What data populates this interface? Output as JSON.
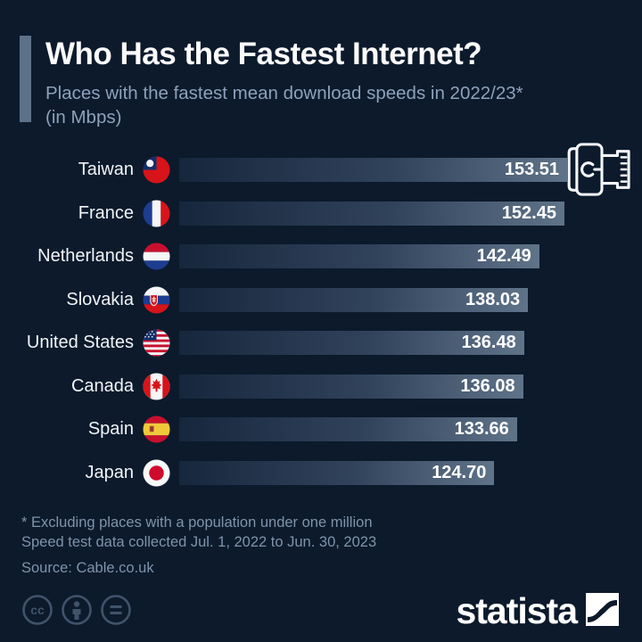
{
  "header": {
    "title": "Who Has the Fastest Internet?",
    "subtitle_line1": "Places with the fastest mean download speeds in 2022/23*",
    "subtitle_line2": "(in Mbps)"
  },
  "chart_data": {
    "type": "bar",
    "orientation": "horizontal",
    "title": "Who Has the Fastest Internet?",
    "subtitle": "Places with the fastest mean download speeds in 2022/23* (in Mbps)",
    "unit": "Mbps",
    "xlim": [
      0,
      153.51
    ],
    "grid": false,
    "legend": null,
    "categories": [
      "Taiwan",
      "France",
      "Netherlands",
      "Slovakia",
      "United States",
      "Canada",
      "Spain",
      "Japan"
    ],
    "values": [
      153.51,
      152.45,
      142.49,
      138.03,
      136.48,
      136.08,
      133.66,
      124.7
    ],
    "rows": [
      {
        "label": "Taiwan",
        "value": "153.51",
        "flag": "flag-taiwan"
      },
      {
        "label": "France",
        "value": "152.45",
        "flag": "flag-france"
      },
      {
        "label": "Netherlands",
        "value": "142.49",
        "flag": "flag-netherlands"
      },
      {
        "label": "Slovakia",
        "value": "138.03",
        "flag": "flag-slovakia"
      },
      {
        "label": "United States",
        "value": "136.48",
        "flag": "flag-us"
      },
      {
        "label": "Canada",
        "value": "136.08",
        "flag": "flag-canada"
      },
      {
        "label": "Spain",
        "value": "133.66",
        "flag": "flag-spain"
      },
      {
        "label": "Japan",
        "value": "124.70",
        "flag": "flag-japan"
      }
    ],
    "decoration_icon": "ethernet-plug-icon"
  },
  "footnotes": {
    "line1": "* Excluding places with a population under one million",
    "line2": "Speed test data collected Jul. 1, 2022 to Jun. 30, 2023",
    "source": "Source: Cable.co.uk"
  },
  "footer": {
    "brand": "statista",
    "license_icons": [
      "cc-icon",
      "attribution-icon",
      "no-derivatives-icon"
    ]
  },
  "colors": {
    "background": "#0c1a2c",
    "accent_bar": "#5d7189",
    "bar_gradient_start": "#16273d",
    "bar_gradient_end": "#5f7389",
    "subtitle_text": "#8ea1bb",
    "footnote_text": "#7f93ab",
    "value_text": "#ffffff"
  }
}
